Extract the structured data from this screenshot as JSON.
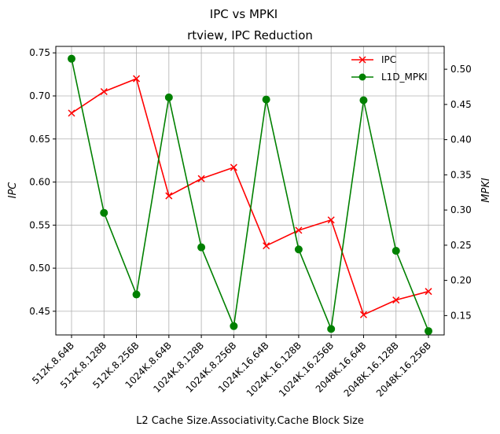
{
  "chart_data": {
    "type": "line",
    "suptitle": "IPC vs MPKI",
    "title": "rtview, IPC Reduction",
    "xlabel": "L2 Cache Size.Associativity.Cache Block Size",
    "ylabel_left": "IPC",
    "ylabel_right": "MPKI",
    "categories": [
      "512K.8.64B",
      "512K.8.128B",
      "512K.8.256B",
      "1024K.8.64B",
      "1024K.8.128B",
      "1024K.8.256B",
      "1024K.16.64B",
      "1024K.16.128B",
      "1024K.16.256B",
      "2048K.16.64B",
      "2048K.16.128B",
      "2048K.16.256B"
    ],
    "left_ylim": [
      0.4225,
      0.7575
    ],
    "left_ticks": [
      "0.45",
      "0.50",
      "0.55",
      "0.60",
      "0.65",
      "0.70",
      "0.75"
    ],
    "left_tick_values": [
      0.45,
      0.5,
      0.55,
      0.6,
      0.65,
      0.7,
      0.75
    ],
    "right_ylim": [
      0.1225,
      0.5325
    ],
    "right_ticks": [
      "0.15",
      "0.20",
      "0.25",
      "0.30",
      "0.35",
      "0.40",
      "0.45",
      "0.50"
    ],
    "right_tick_values": [
      0.15,
      0.2,
      0.25,
      0.3,
      0.35,
      0.4,
      0.45,
      0.5
    ],
    "grid": true,
    "legend_position": "top-right",
    "series": [
      {
        "name": "IPC",
        "axis": "left",
        "color": "#ff0000",
        "marker": "x",
        "values": [
          0.68,
          0.705,
          0.72,
          0.584,
          0.604,
          0.617,
          0.526,
          0.544,
          0.556,
          0.446,
          0.463,
          0.473
        ]
      },
      {
        "name": "L1D_MPKI",
        "axis": "right",
        "color": "#008000",
        "marker": "o",
        "values": [
          0.515,
          0.296,
          0.18,
          0.46,
          0.247,
          0.135,
          0.457,
          0.244,
          0.131,
          0.456,
          0.242,
          0.128
        ]
      }
    ]
  }
}
